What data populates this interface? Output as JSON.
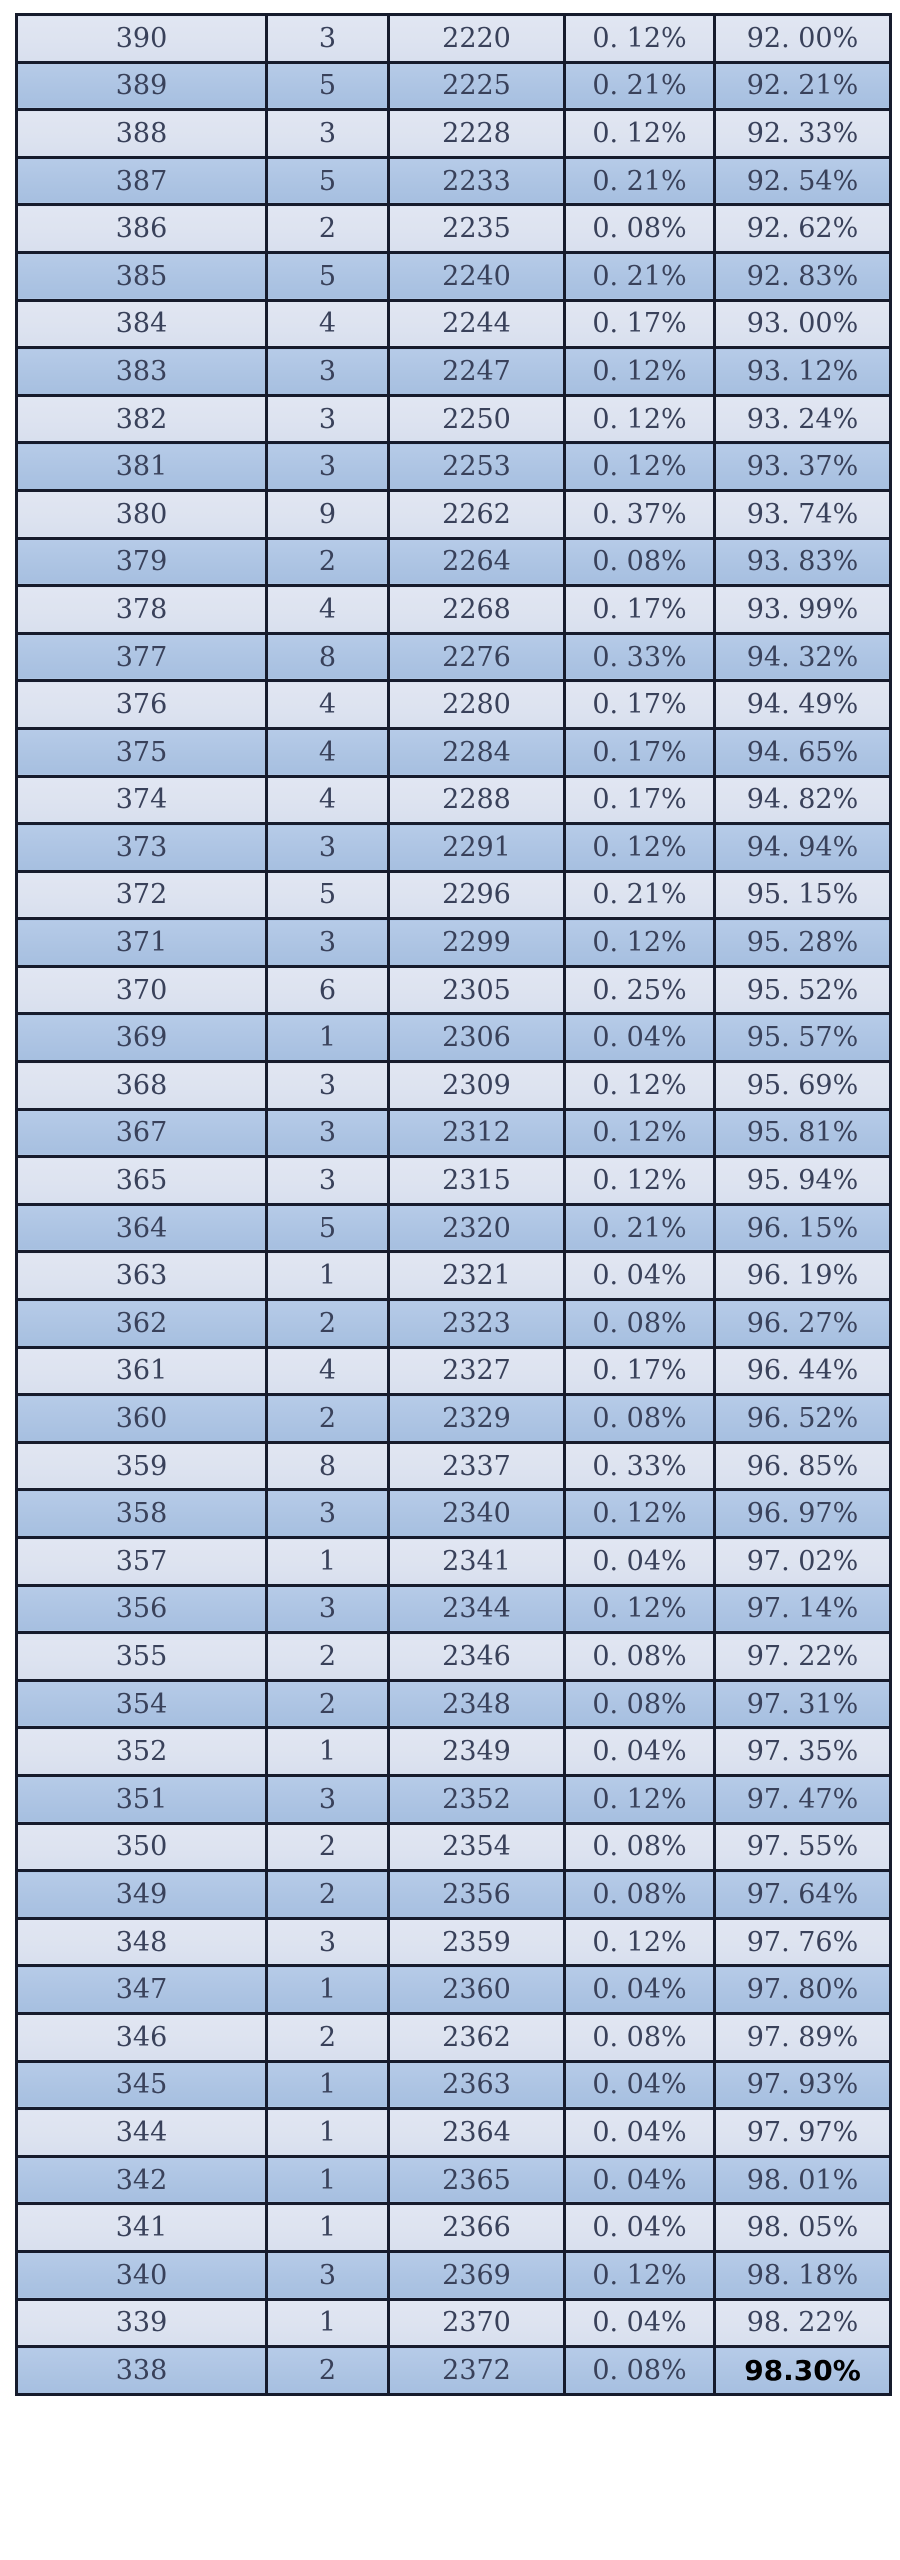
{
  "colors": {
    "row_light": "#dde3f0",
    "row_dark": "#adc4e3",
    "border": "#161b2c",
    "text": "#39415a",
    "final_text": "#000000",
    "page_bg": "#ffffff"
  },
  "table": {
    "rows": [
      [
        "390",
        "3",
        "2220",
        "0. 12%",
        "92. 00%"
      ],
      [
        "389",
        "5",
        "2225",
        "0. 21%",
        "92. 21%"
      ],
      [
        "388",
        "3",
        "2228",
        "0. 12%",
        "92. 33%"
      ],
      [
        "387",
        "5",
        "2233",
        "0. 21%",
        "92. 54%"
      ],
      [
        "386",
        "2",
        "2235",
        "0. 08%",
        "92. 62%"
      ],
      [
        "385",
        "5",
        "2240",
        "0. 21%",
        "92. 83%"
      ],
      [
        "384",
        "4",
        "2244",
        "0. 17%",
        "93. 00%"
      ],
      [
        "383",
        "3",
        "2247",
        "0. 12%",
        "93. 12%"
      ],
      [
        "382",
        "3",
        "2250",
        "0. 12%",
        "93. 24%"
      ],
      [
        "381",
        "3",
        "2253",
        "0. 12%",
        "93. 37%"
      ],
      [
        "380",
        "9",
        "2262",
        "0. 37%",
        "93. 74%"
      ],
      [
        "379",
        "2",
        "2264",
        "0. 08%",
        "93. 83%"
      ],
      [
        "378",
        "4",
        "2268",
        "0. 17%",
        "93. 99%"
      ],
      [
        "377",
        "8",
        "2276",
        "0. 33%",
        "94. 32%"
      ],
      [
        "376",
        "4",
        "2280",
        "0. 17%",
        "94. 49%"
      ],
      [
        "375",
        "4",
        "2284",
        "0. 17%",
        "94. 65%"
      ],
      [
        "374",
        "4",
        "2288",
        "0. 17%",
        "94. 82%"
      ],
      [
        "373",
        "3",
        "2291",
        "0. 12%",
        "94. 94%"
      ],
      [
        "372",
        "5",
        "2296",
        "0. 21%",
        "95. 15%"
      ],
      [
        "371",
        "3",
        "2299",
        "0. 12%",
        "95. 28%"
      ],
      [
        "370",
        "6",
        "2305",
        "0. 25%",
        "95. 52%"
      ],
      [
        "369",
        "1",
        "2306",
        "0. 04%",
        "95. 57%"
      ],
      [
        "368",
        "3",
        "2309",
        "0. 12%",
        "95. 69%"
      ],
      [
        "367",
        "3",
        "2312",
        "0. 12%",
        "95. 81%"
      ],
      [
        "365",
        "3",
        "2315",
        "0. 12%",
        "95. 94%"
      ],
      [
        "364",
        "5",
        "2320",
        "0. 21%",
        "96. 15%"
      ],
      [
        "363",
        "1",
        "2321",
        "0. 04%",
        "96. 19%"
      ],
      [
        "362",
        "2",
        "2323",
        "0. 08%",
        "96. 27%"
      ],
      [
        "361",
        "4",
        "2327",
        "0. 17%",
        "96. 44%"
      ],
      [
        "360",
        "2",
        "2329",
        "0. 08%",
        "96. 52%"
      ],
      [
        "359",
        "8",
        "2337",
        "0. 33%",
        "96. 85%"
      ],
      [
        "358",
        "3",
        "2340",
        "0. 12%",
        "96. 97%"
      ],
      [
        "357",
        "1",
        "2341",
        "0. 04%",
        "97. 02%"
      ],
      [
        "356",
        "3",
        "2344",
        "0. 12%",
        "97. 14%"
      ],
      [
        "355",
        "2",
        "2346",
        "0. 08%",
        "97. 22%"
      ],
      [
        "354",
        "2",
        "2348",
        "0. 08%",
        "97. 31%"
      ],
      [
        "352",
        "1",
        "2349",
        "0. 04%",
        "97. 35%"
      ],
      [
        "351",
        "3",
        "2352",
        "0. 12%",
        "97. 47%"
      ],
      [
        "350",
        "2",
        "2354",
        "0. 08%",
        "97. 55%"
      ],
      [
        "349",
        "2",
        "2356",
        "0. 08%",
        "97. 64%"
      ],
      [
        "348",
        "3",
        "2359",
        "0. 12%",
        "97. 76%"
      ],
      [
        "347",
        "1",
        "2360",
        "0. 04%",
        "97. 80%"
      ],
      [
        "346",
        "2",
        "2362",
        "0. 08%",
        "97. 89%"
      ],
      [
        "345",
        "1",
        "2363",
        "0. 04%",
        "97. 93%"
      ],
      [
        "344",
        "1",
        "2364",
        "0. 04%",
        "97. 97%"
      ],
      [
        "342",
        "1",
        "2365",
        "0. 04%",
        "98. 01%"
      ],
      [
        "341",
        "1",
        "2366",
        "0. 04%",
        "98. 05%"
      ],
      [
        "340",
        "3",
        "2369",
        "0. 12%",
        "98. 18%"
      ],
      [
        "339",
        "1",
        "2370",
        "0. 04%",
        "98. 22%"
      ],
      [
        "338",
        "2",
        "2372",
        "0. 08%",
        "98.30%"
      ]
    ]
  }
}
